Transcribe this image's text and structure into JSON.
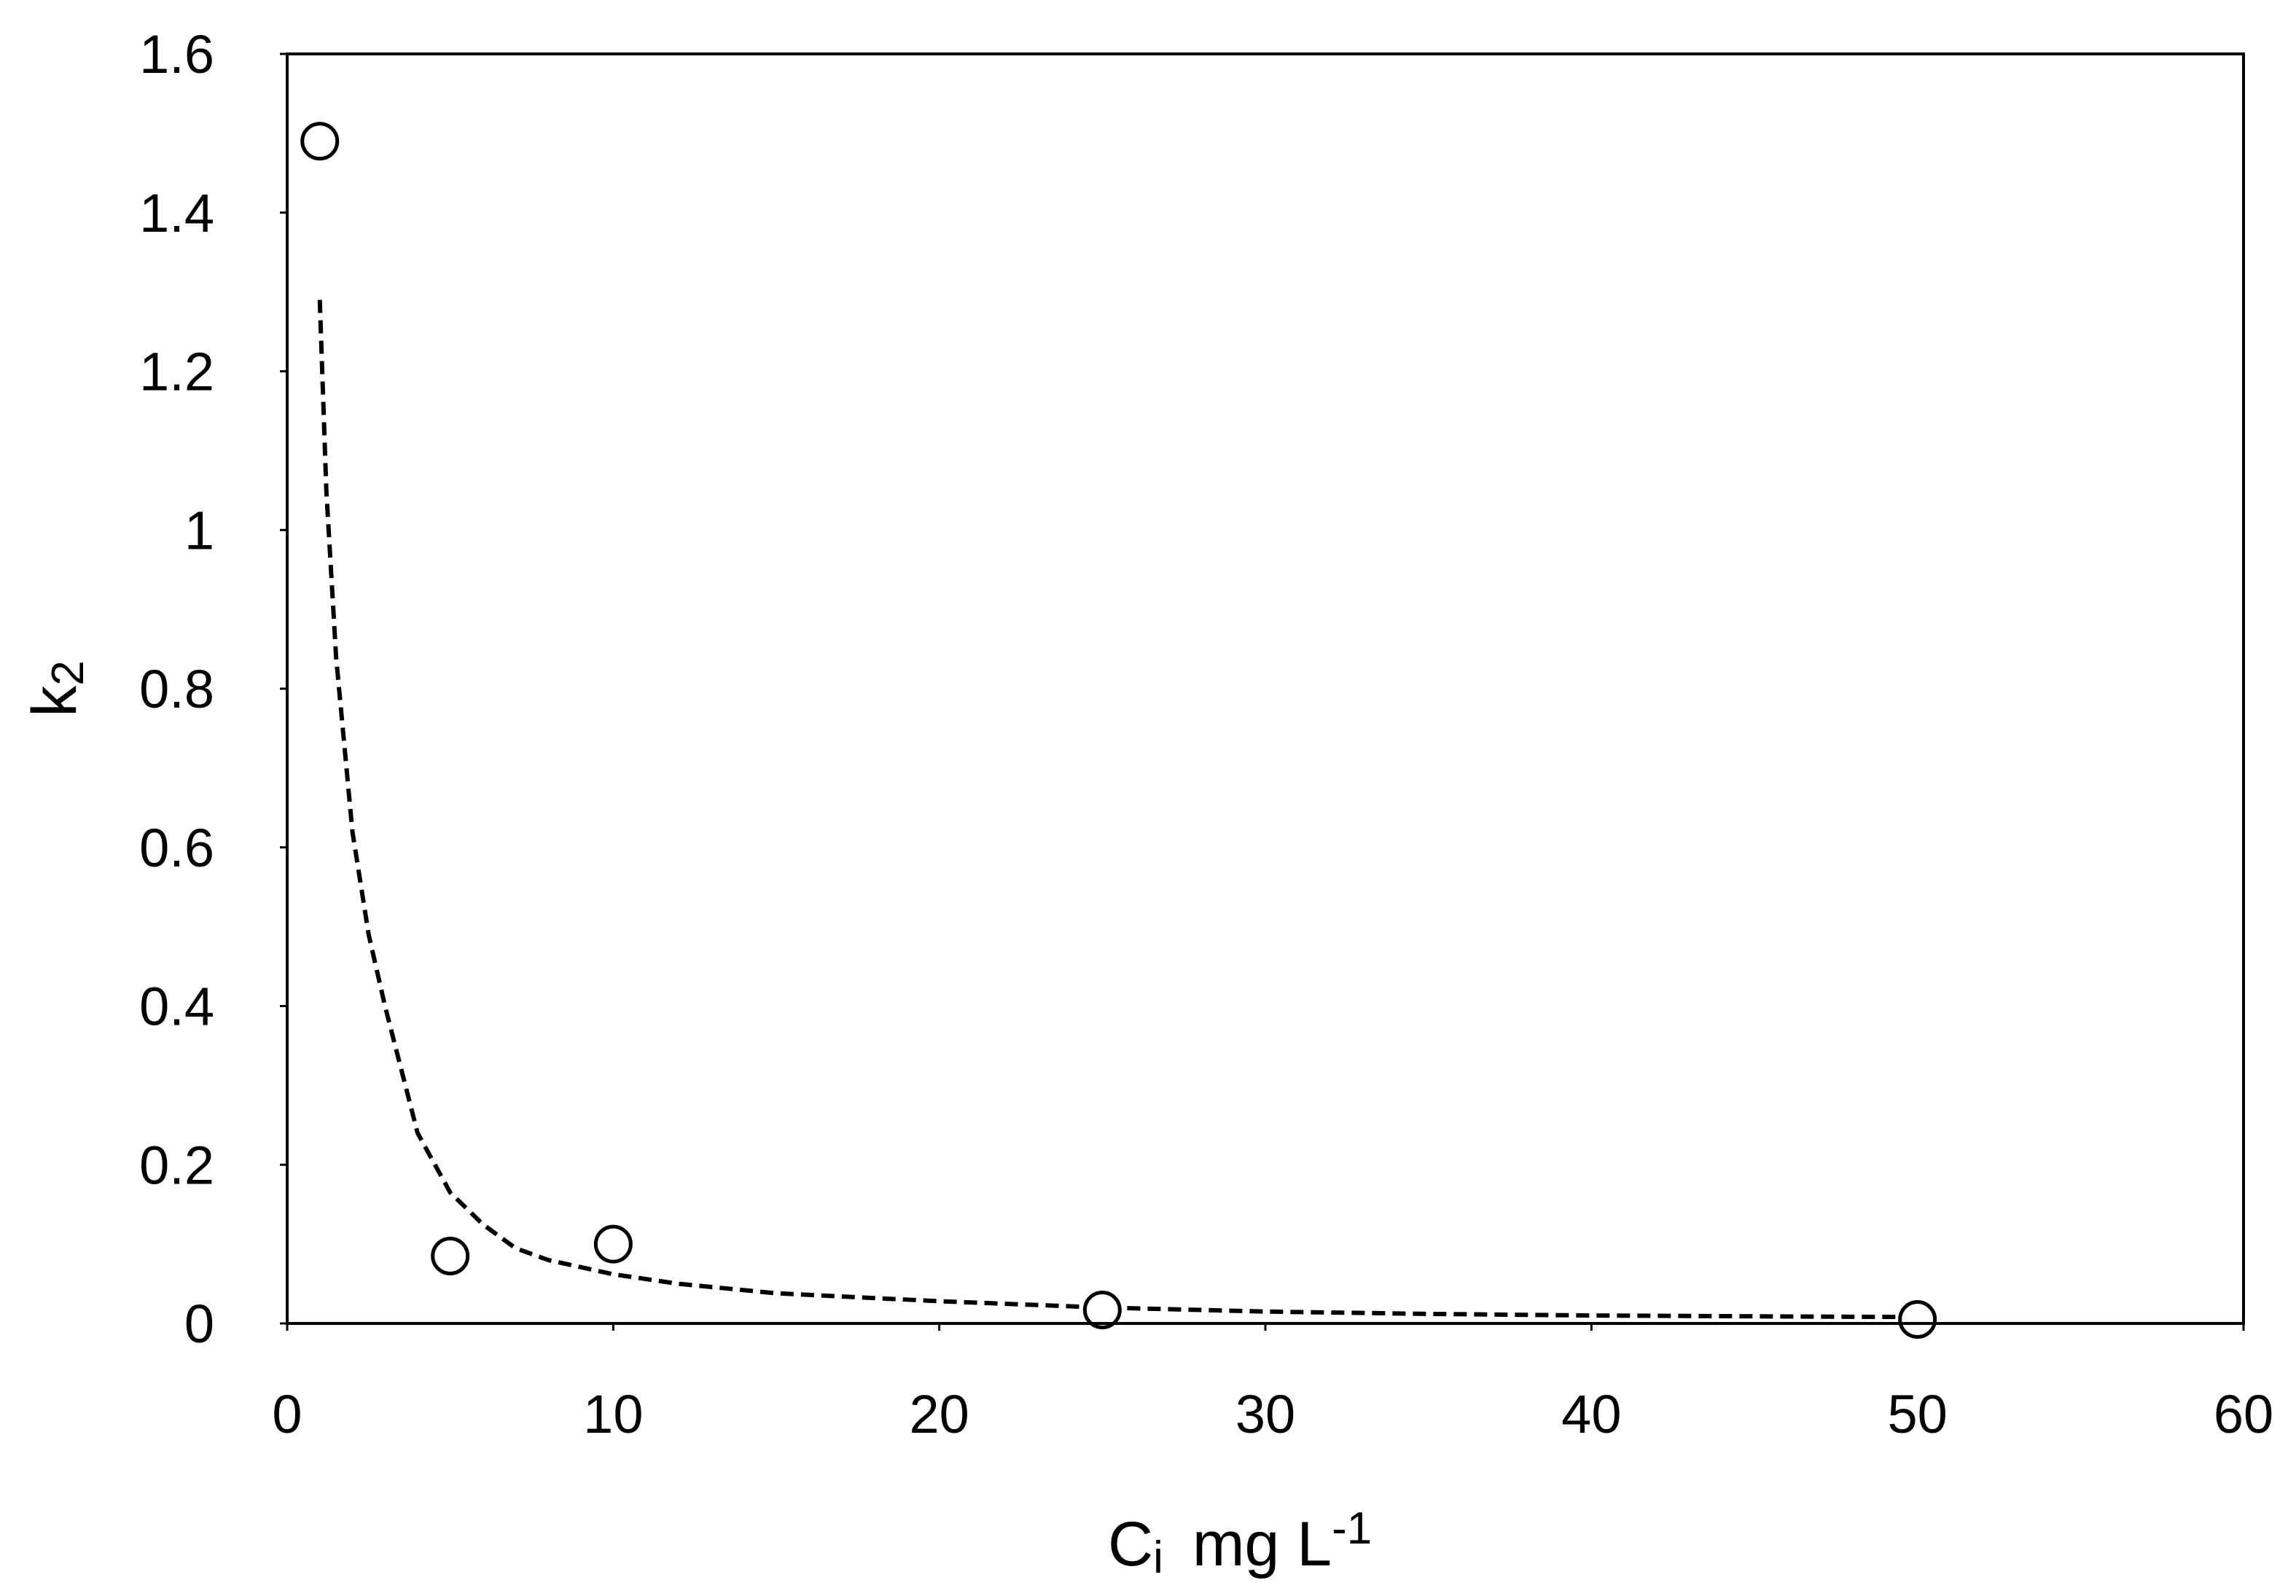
{
  "chart_data": {
    "type": "scatter",
    "xlabel": {
      "main": "C",
      "sub": "i",
      "unit": "mg L",
      "sup": "-1"
    },
    "ylabel": {
      "main": "k",
      "sub": "2"
    },
    "xlim": [
      0,
      60
    ],
    "ylim": [
      0,
      1.6
    ],
    "x_ticks": [
      0,
      10,
      20,
      30,
      40,
      50,
      60
    ],
    "x_tick_labels": [
      "0",
      "10",
      "20",
      "30",
      "40",
      "50",
      "60"
    ],
    "y_ticks": [
      0,
      0.2,
      0.4,
      0.6,
      0.8,
      1.0,
      1.2,
      1.4,
      1.6
    ],
    "y_tick_labels": [
      "0",
      "0.2",
      "0.4",
      "0.6",
      "0.8",
      "1",
      "1.2",
      "1.4",
      "1.6"
    ],
    "grid": false,
    "series": [
      {
        "type": "scatter",
        "marker": "open-circle",
        "color": "#000000",
        "x": [
          1,
          5,
          10,
          25,
          50
        ],
        "y": [
          1.49,
          0.085,
          0.1,
          0.017,
          0.005
        ]
      },
      {
        "type": "line",
        "style": "dashed",
        "color": "#000000",
        "x": [
          1,
          1.2,
          1.5,
          2,
          2.5,
          3,
          4,
          5,
          6,
          7,
          8,
          10,
          12,
          15,
          20,
          25,
          30,
          35,
          40,
          45,
          50
        ],
        "y": [
          1.29,
          1.05,
          0.84,
          0.62,
          0.49,
          0.4,
          0.24,
          0.165,
          0.125,
          0.095,
          0.08,
          0.062,
          0.05,
          0.038,
          0.028,
          0.02,
          0.015,
          0.012,
          0.01,
          0.009,
          0.008
        ]
      }
    ]
  }
}
